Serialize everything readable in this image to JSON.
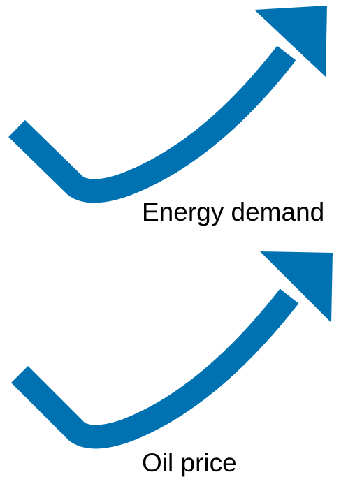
{
  "colors": {
    "arrow": "#0072B2",
    "text": "#000000",
    "background": "#ffffff"
  },
  "indicators": [
    {
      "label": "Energy demand",
      "trend": "up",
      "icon": "trend-up-arrow-icon"
    },
    {
      "label": "Oil price",
      "trend": "up",
      "icon": "trend-up-arrow-icon"
    }
  ]
}
